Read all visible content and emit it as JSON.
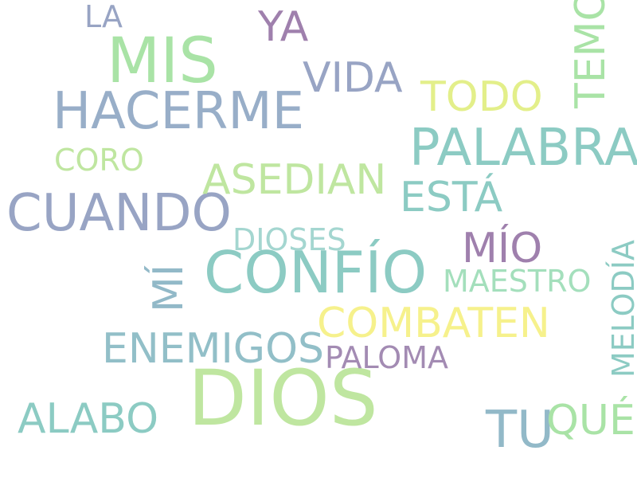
{
  "word_cloud": {
    "words": [
      {
        "key": "dios",
        "text": "DIOS",
        "color": "#bfe6a0"
      },
      {
        "key": "confio",
        "text": "CONFÍO",
        "color": "#8ccbc3"
      },
      {
        "key": "mis",
        "text": "MIS",
        "color": "#a9e3a6"
      },
      {
        "key": "palabra",
        "text": "PALABRA",
        "color": "#8ccbc3"
      },
      {
        "key": "cuando",
        "text": "CUANDO",
        "color": "#98a4c4"
      },
      {
        "key": "hacerme",
        "text": "HACERME",
        "color": "#98aec8"
      },
      {
        "key": "enemigos",
        "text": "ENEMIGOS",
        "color": "#92bfc8"
      },
      {
        "key": "asedian",
        "text": "ASEDIAN",
        "color": "#bfe6a0"
      },
      {
        "key": "combaten",
        "text": "COMBATEN",
        "color": "#f6f18c"
      },
      {
        "key": "alabo",
        "text": "ALABO",
        "color": "#8ccbc3"
      },
      {
        "key": "esta",
        "text": "ESTÁ",
        "color": "#8ccbc3"
      },
      {
        "key": "tu",
        "text": "TU",
        "color": "#92b9c8"
      },
      {
        "key": "que",
        "text": "QUÉ",
        "color": "#a9e3a6"
      },
      {
        "key": "mio",
        "text": "MÍO",
        "color": "#9f80ad"
      },
      {
        "key": "vida",
        "text": "VIDA",
        "color": "#98a4c4"
      },
      {
        "key": "todo",
        "text": "TODO",
        "color": "#e3ef8a"
      },
      {
        "key": "ya",
        "text": "YA",
        "color": "#9f80ad"
      },
      {
        "key": "la",
        "text": "LA",
        "color": "#98a4c4"
      },
      {
        "key": "coro",
        "text": "CORO",
        "color": "#bfe6a0"
      },
      {
        "key": "dioses",
        "text": "DIOSES",
        "color": "#a4d6d0"
      },
      {
        "key": "maestro",
        "text": "MAESTRO",
        "color": "#a4dfbc"
      },
      {
        "key": "paloma",
        "text": "PALOMA",
        "color": "#a38bb3"
      },
      {
        "key": "temo",
        "text": "TEMO",
        "color": "#a9e3a6"
      },
      {
        "key": "mi",
        "text": "MÍ",
        "color": "#92b9c8"
      },
      {
        "key": "melodia",
        "text": "MELODÍA",
        "color": "#8ccbc3"
      }
    ]
  }
}
